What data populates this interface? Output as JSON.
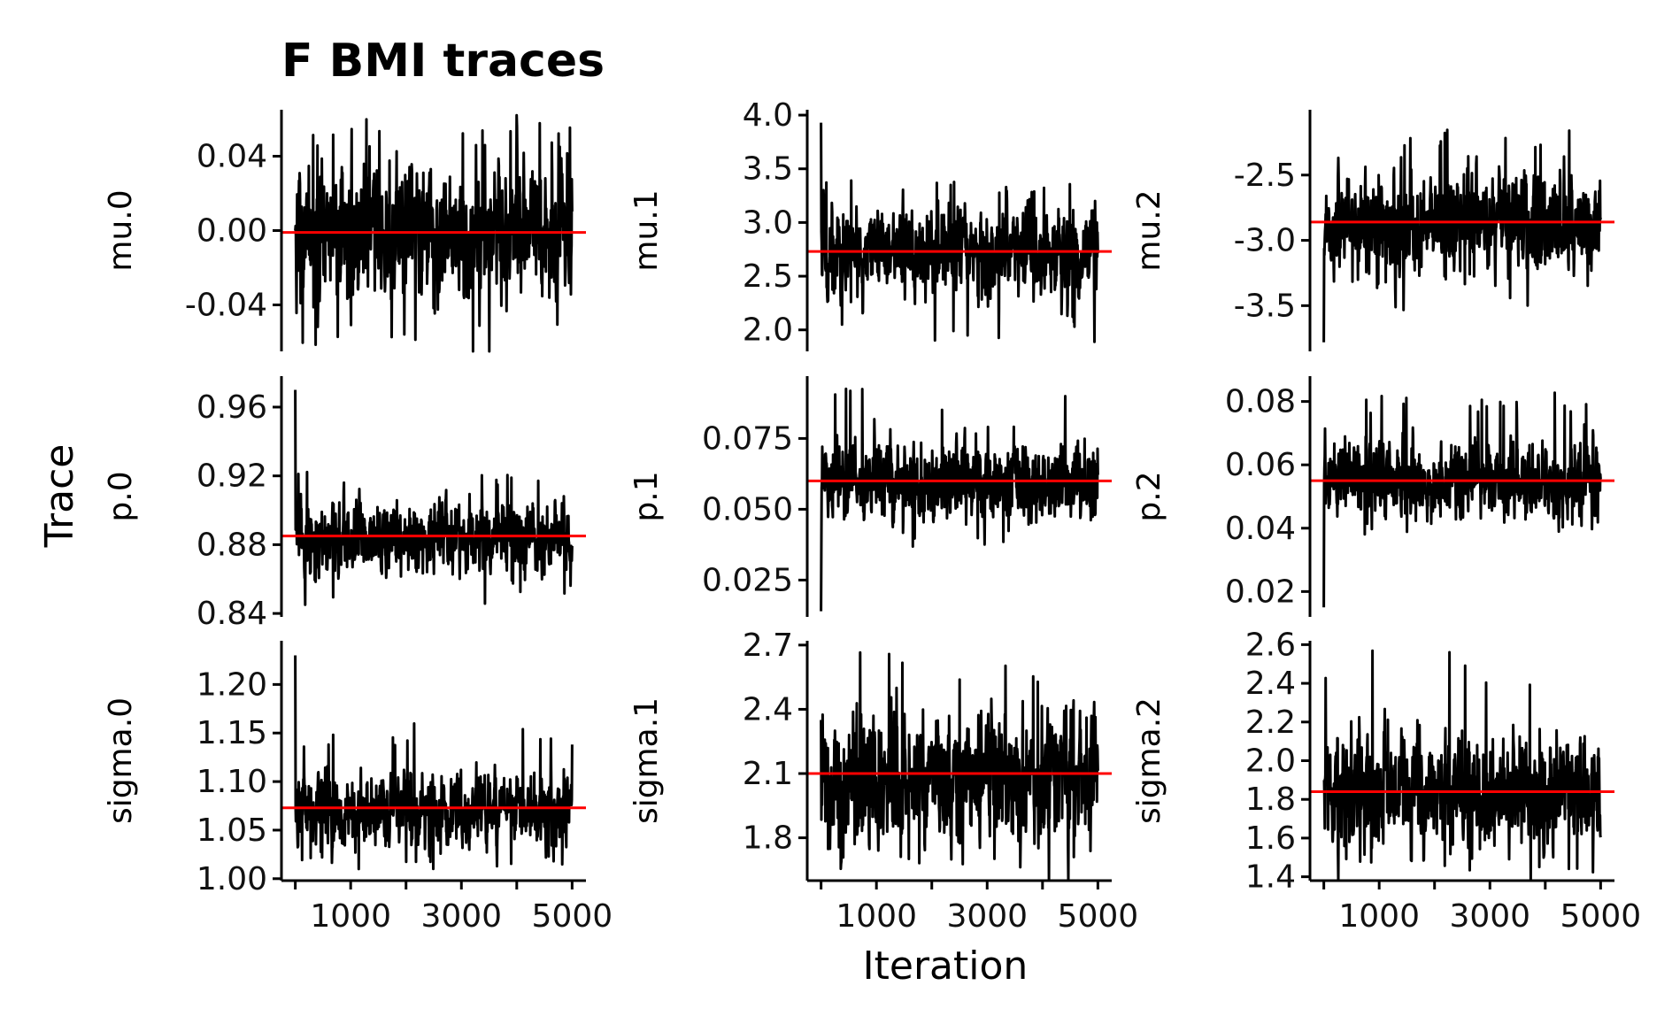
{
  "figure": {
    "title": "F BMI traces",
    "xlabel": "Iteration",
    "ylabel": "Trace"
  },
  "chart_data": [
    {
      "type": "line",
      "ylabel": "mu.0",
      "row": 0,
      "col": 0,
      "xlim": [
        -250,
        5250
      ],
      "ylim": [
        -0.065,
        0.065
      ],
      "yticks": [
        -0.04,
        0.0,
        0.04
      ],
      "ydecimals": 2,
      "xticks": [
        1000,
        3000,
        5000
      ],
      "xtick_marks": [
        0,
        1000,
        2000,
        3000,
        4000,
        5000
      ],
      "show_xticks": false,
      "center": -0.001,
      "spread": 0.016,
      "burn_start": 0.0,
      "spike_up": 0.06,
      "spike_down": -0.068,
      "mean_line": -0.001,
      "trace_color": "#000000",
      "mean_color": "#ff0000"
    },
    {
      "type": "line",
      "ylabel": "mu.1",
      "row": 0,
      "col": 1,
      "xlim": [
        -250,
        5250
      ],
      "ylim": [
        1.8,
        4.05
      ],
      "yticks": [
        2.0,
        2.5,
        3.0,
        3.5,
        4.0
      ],
      "ydecimals": 1,
      "xticks": [
        1000,
        3000,
        5000
      ],
      "xtick_marks": [
        0,
        1000,
        2000,
        3000,
        4000,
        5000
      ],
      "show_xticks": false,
      "center": 2.73,
      "spread": 0.19,
      "burn_start": 3.93,
      "spike_up": 3.4,
      "spike_down": 1.88,
      "mean_line": 2.73,
      "trace_color": "#000000",
      "mean_color": "#ff0000"
    },
    {
      "type": "line",
      "ylabel": "mu.2",
      "row": 0,
      "col": 2,
      "xlim": [
        -250,
        5250
      ],
      "ylim": [
        -3.85,
        -2.0
      ],
      "yticks": [
        -3.5,
        -3.0,
        -2.5
      ],
      "ydecimals": 1,
      "xticks": [
        1000,
        3000,
        5000
      ],
      "xtick_marks": [
        0,
        1000,
        2000,
        3000,
        4000,
        5000
      ],
      "show_xticks": false,
      "center": -2.87,
      "spread": 0.17,
      "burn_start": -3.78,
      "spike_up": -2.12,
      "spike_down": -3.37,
      "mean_line": -2.86,
      "trace_color": "#000000",
      "mean_color": "#ff0000"
    },
    {
      "type": "line",
      "ylabel": "p.0",
      "row": 1,
      "col": 0,
      "xlim": [
        -250,
        5250
      ],
      "ylim": [
        0.838,
        0.978
      ],
      "yticks": [
        0.84,
        0.88,
        0.92,
        0.96
      ],
      "ydecimals": 2,
      "xticks": [
        1000,
        3000,
        5000
      ],
      "xtick_marks": [
        0,
        1000,
        2000,
        3000,
        4000,
        5000
      ],
      "show_xticks": false,
      "center": 0.884,
      "spread": 0.009,
      "burn_start": 0.97,
      "spike_up": 0.923,
      "spike_down": 0.844,
      "mean_line": 0.885,
      "trace_color": "#000000",
      "mean_color": "#ff0000"
    },
    {
      "type": "line",
      "ylabel": "p.1",
      "row": 1,
      "col": 1,
      "xlim": [
        -250,
        5250
      ],
      "ylim": [
        0.012,
        0.097
      ],
      "yticks": [
        0.025,
        0.05,
        0.075
      ],
      "ydecimals": 3,
      "xticks": [
        1000,
        3000,
        5000
      ],
      "xtick_marks": [
        0,
        1000,
        2000,
        3000,
        4000,
        5000
      ],
      "show_xticks": false,
      "center": 0.06,
      "spread": 0.0065,
      "burn_start": 0.014,
      "spike_up": 0.093,
      "spike_down": 0.036,
      "mean_line": 0.06,
      "trace_color": "#000000",
      "mean_color": "#ff0000"
    },
    {
      "type": "line",
      "ylabel": "p.2",
      "row": 1,
      "col": 2,
      "xlim": [
        -250,
        5250
      ],
      "ylim": [
        0.012,
        0.088
      ],
      "yticks": [
        0.02,
        0.04,
        0.06,
        0.08
      ],
      "ydecimals": 2,
      "xticks": [
        1000,
        3000,
        5000
      ],
      "xtick_marks": [
        0,
        1000,
        2000,
        3000,
        4000,
        5000
      ],
      "show_xticks": false,
      "center": 0.055,
      "spread": 0.0055,
      "burn_start": 0.015,
      "spike_up": 0.083,
      "spike_down": 0.038,
      "mean_line": 0.055,
      "trace_color": "#000000",
      "mean_color": "#ff0000"
    },
    {
      "type": "line",
      "ylabel": "sigma.0",
      "row": 2,
      "col": 0,
      "xlim": [
        -250,
        5250
      ],
      "ylim": [
        0.998,
        1.245
      ],
      "yticks": [
        1.0,
        1.05,
        1.1,
        1.15,
        1.2
      ],
      "ydecimals": 2,
      "xticks": [
        1000,
        3000,
        5000
      ],
      "xtick_marks": [
        0,
        1000,
        2000,
        3000,
        4000,
        5000
      ],
      "show_xticks": true,
      "center": 1.07,
      "spread": 0.017,
      "burn_start": 1.23,
      "spike_up": 1.16,
      "spike_down": 1.008,
      "mean_line": 1.073,
      "trace_color": "#000000",
      "mean_color": "#ff0000"
    },
    {
      "type": "line",
      "ylabel": "sigma.1",
      "row": 2,
      "col": 1,
      "xlim": [
        -250,
        5250
      ],
      "ylim": [
        1.6,
        2.72
      ],
      "yticks": [
        1.8,
        2.1,
        2.4,
        2.7
      ],
      "ydecimals": 1,
      "xticks": [
        1000,
        3000,
        5000
      ],
      "xtick_marks": [
        0,
        1000,
        2000,
        3000,
        4000,
        5000
      ],
      "show_xticks": true,
      "center": 2.08,
      "spread": 0.14,
      "burn_start": 2.35,
      "spike_up": 2.67,
      "spike_down": 1.64,
      "mean_line": 2.1,
      "trace_color": "#000000",
      "mean_color": "#ff0000"
    },
    {
      "type": "line",
      "ylabel": "sigma.2",
      "row": 2,
      "col": 2,
      "xlim": [
        -250,
        5250
      ],
      "ylim": [
        1.38,
        2.62
      ],
      "yticks": [
        1.4,
        1.6,
        1.8,
        2.0,
        2.2,
        2.4,
        2.6
      ],
      "ydecimals": 1,
      "xticks": [
        1000,
        3000,
        5000
      ],
      "xtick_marks": [
        0,
        1000,
        2000,
        3000,
        4000,
        5000
      ],
      "show_xticks": true,
      "center": 1.84,
      "spread": 0.13,
      "burn_start": 1.9,
      "spike_up": 2.57,
      "spike_down": 1.43,
      "mean_line": 1.84,
      "trace_color": "#000000",
      "mean_color": "#ff0000"
    }
  ]
}
